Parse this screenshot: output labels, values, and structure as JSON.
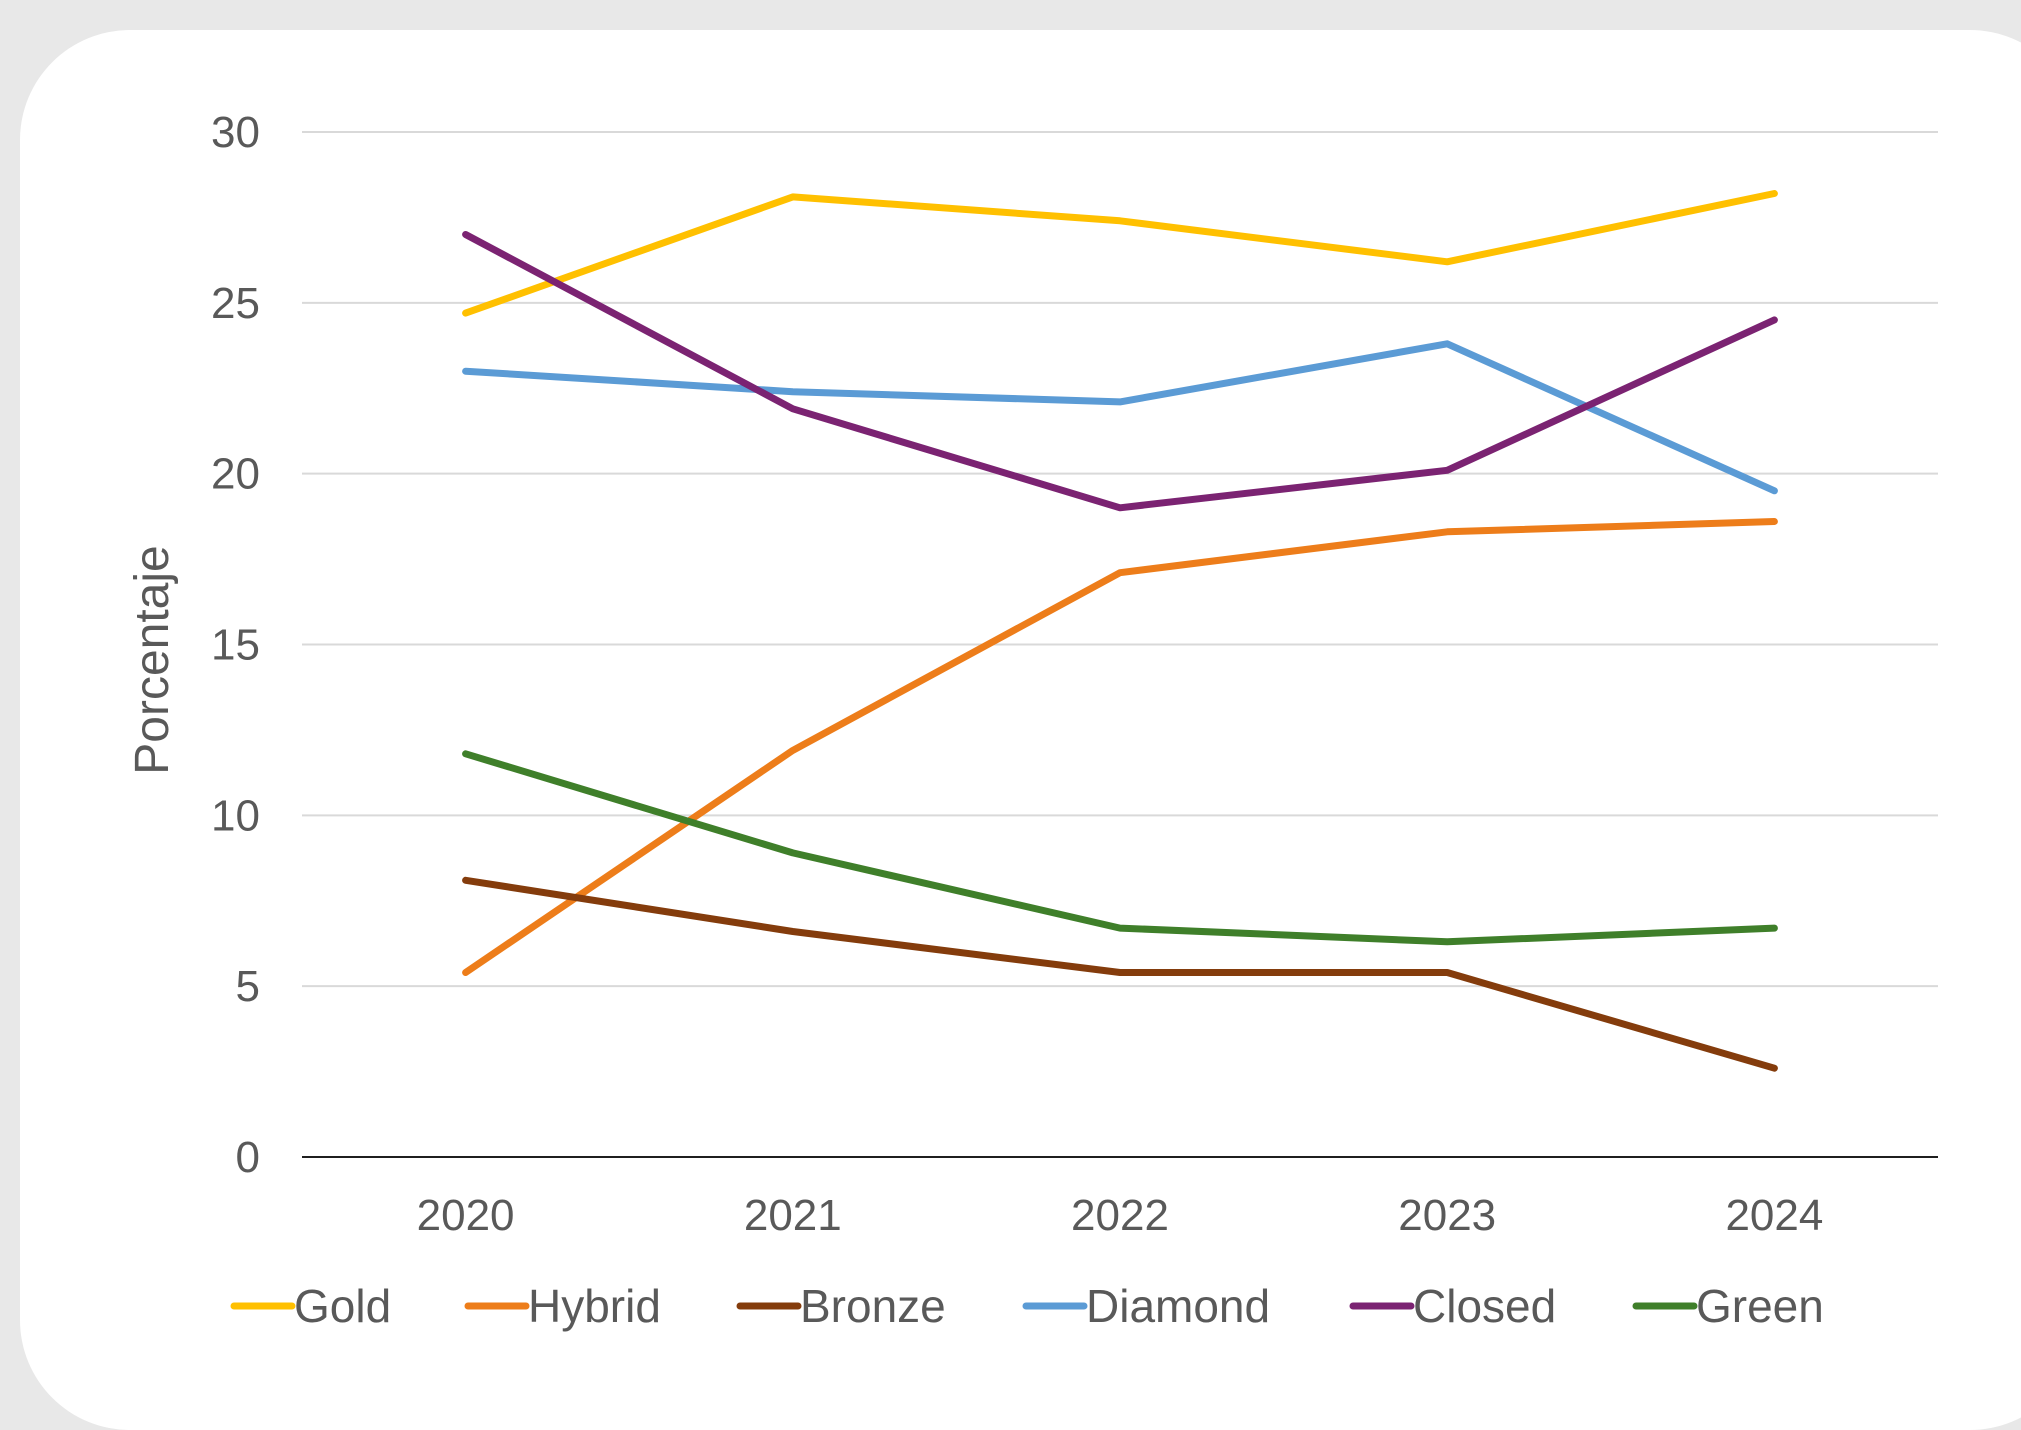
{
  "chart_data": {
    "type": "line",
    "title": "",
    "xlabel": "",
    "ylabel": "Porcentaje",
    "categories": [
      "2020",
      "2021",
      "2022",
      "2023",
      "2024"
    ],
    "ylim": [
      0,
      30
    ],
    "yticks": [
      "0",
      "5",
      "10",
      "15",
      "20",
      "25",
      "30"
    ],
    "grid": true,
    "legend_position": "bottom",
    "series": [
      {
        "name": "Gold",
        "color": "#FFC000",
        "values": [
          24.7,
          28.1,
          27.4,
          26.2,
          28.2
        ]
      },
      {
        "name": "Hybrid",
        "color": "#ED7D1A",
        "values": [
          5.4,
          11.9,
          17.1,
          18.3,
          18.6
        ]
      },
      {
        "name": "Bronze",
        "color": "#843C0C",
        "values": [
          8.1,
          6.6,
          5.4,
          5.4,
          2.6
        ]
      },
      {
        "name": "Diamond",
        "color": "#5B9BD5",
        "values": [
          23.0,
          22.4,
          22.1,
          23.8,
          19.5
        ]
      },
      {
        "name": "Closed",
        "color": "#7B2372",
        "values": [
          27.0,
          21.9,
          19.0,
          20.1,
          24.5
        ]
      },
      {
        "name": "Green",
        "color": "#3F7F2A",
        "values": [
          11.8,
          8.9,
          6.7,
          6.3,
          6.7
        ]
      }
    ]
  }
}
